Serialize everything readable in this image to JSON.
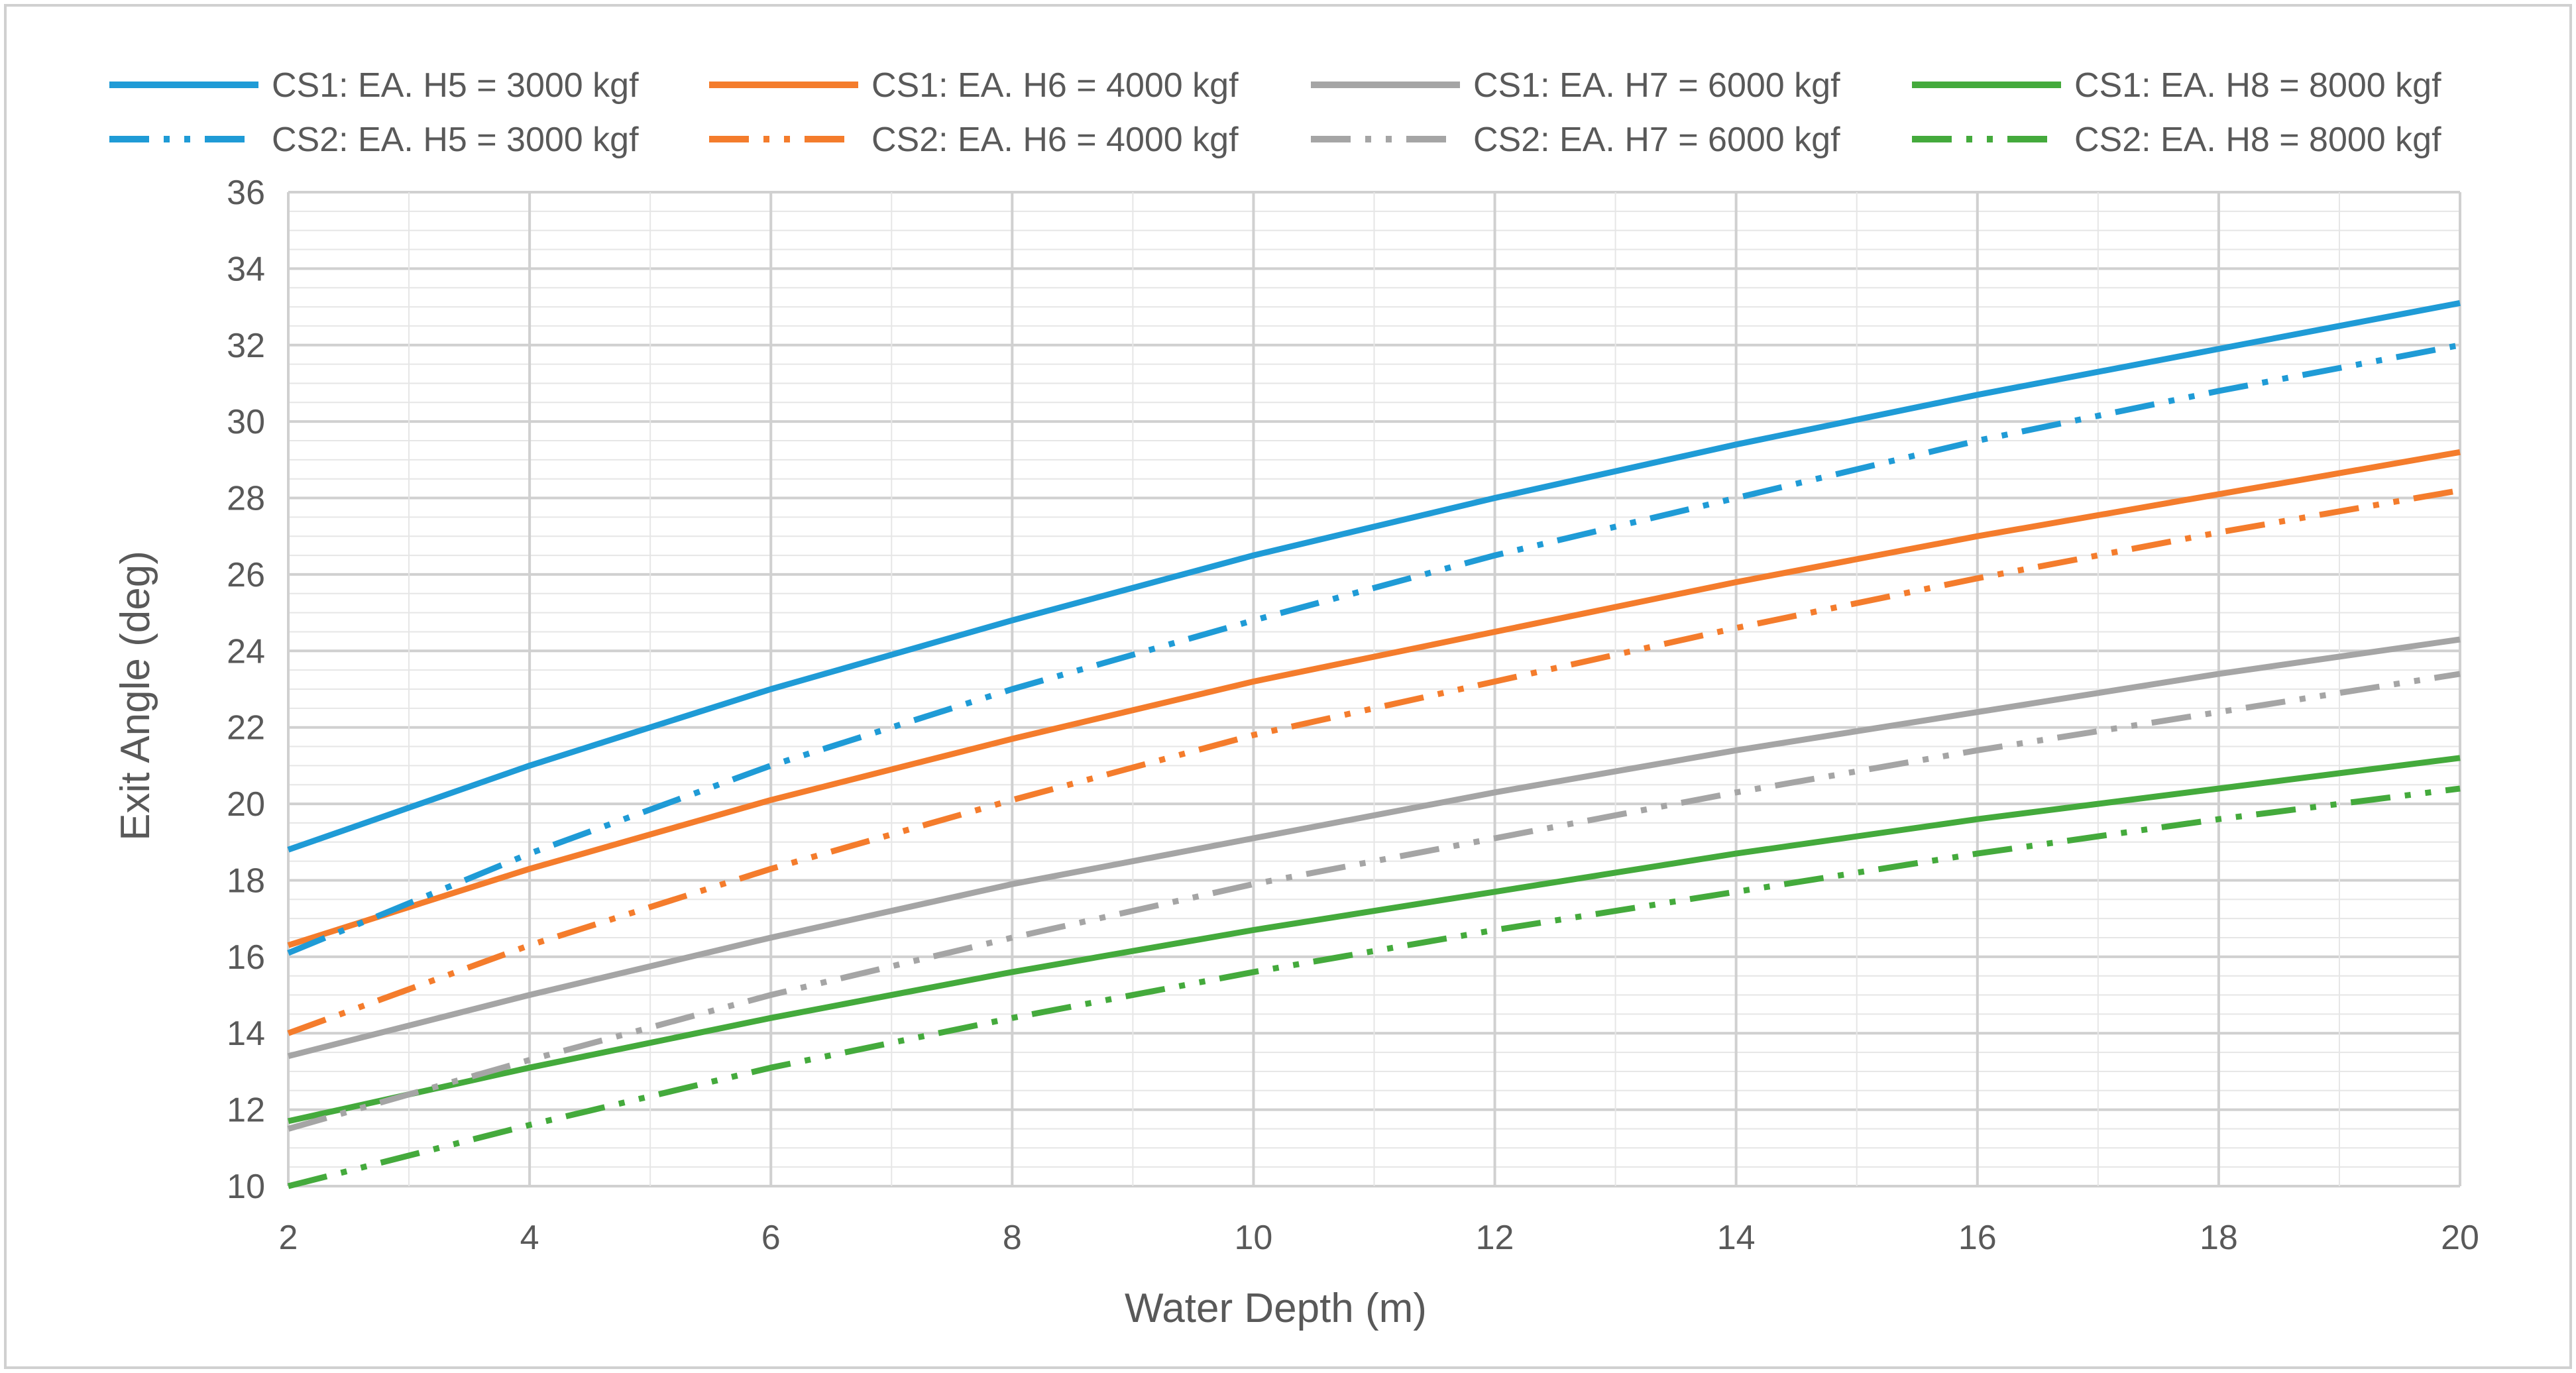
{
  "chart_data": {
    "type": "line",
    "title": "",
    "xlabel": "Water Depth (m)",
    "ylabel": "Exit Angle (deg)",
    "xlim": [
      2,
      20
    ],
    "ylim": [
      10,
      36
    ],
    "x_ticks": [
      2,
      4,
      6,
      8,
      10,
      12,
      14,
      16,
      18,
      20
    ],
    "y_ticks": [
      10,
      12,
      14,
      16,
      18,
      20,
      22,
      24,
      26,
      28,
      30,
      32,
      34,
      36
    ],
    "grid": true,
    "legend_position": "top",
    "x": [
      2,
      4,
      6,
      8,
      10,
      12,
      14,
      16,
      18,
      20
    ],
    "series": [
      {
        "name": "CS1: EA. H5 = 3000 kgf",
        "color": "#1f9bd6",
        "style": "solid",
        "values": [
          18.8,
          21.0,
          23.0,
          24.8,
          26.5,
          28.0,
          29.4,
          30.7,
          31.9,
          33.1
        ]
      },
      {
        "name": "CS1: EA. H6 = 4000 kgf",
        "color": "#f47c2c",
        "style": "solid",
        "values": [
          16.3,
          18.3,
          20.1,
          21.7,
          23.2,
          24.5,
          25.8,
          27.0,
          28.1,
          29.2
        ]
      },
      {
        "name": "CS1: EA. H7 = 6000 kgf",
        "color": "#a5a5a5",
        "style": "solid",
        "values": [
          13.4,
          15.0,
          16.5,
          17.9,
          19.1,
          20.3,
          21.4,
          22.4,
          23.4,
          24.3
        ]
      },
      {
        "name": "CS1: EA. H8 = 8000 kgf",
        "color": "#44aa3c",
        "style": "solid",
        "values": [
          11.7,
          13.1,
          14.4,
          15.6,
          16.7,
          17.7,
          18.7,
          19.6,
          20.4,
          21.2
        ]
      },
      {
        "name": "CS2: EA. H5 = 3000 kgf",
        "color": "#1f9bd6",
        "style": "dashdotdot",
        "values": [
          16.1,
          18.7,
          21.0,
          23.0,
          24.8,
          26.5,
          28.0,
          29.5,
          30.8,
          32.0
        ]
      },
      {
        "name": "CS2: EA. H6 = 4000 kgf",
        "color": "#f47c2c",
        "style": "dashdotdot",
        "values": [
          14.0,
          16.3,
          18.3,
          20.1,
          21.8,
          23.2,
          24.6,
          25.9,
          27.1,
          28.2
        ]
      },
      {
        "name": "CS2: EA. H7 = 6000 kgf",
        "color": "#a5a5a5",
        "style": "dashdotdot",
        "values": [
          11.5,
          13.3,
          15.0,
          16.5,
          17.9,
          19.1,
          20.3,
          21.4,
          22.4,
          23.4
        ]
      },
      {
        "name": "CS2: EA. H8 = 8000 kgf",
        "color": "#44aa3c",
        "style": "dashdotdot",
        "values": [
          10.0,
          11.6,
          13.1,
          14.4,
          15.6,
          16.7,
          17.7,
          18.7,
          19.6,
          20.4
        ]
      }
    ]
  }
}
